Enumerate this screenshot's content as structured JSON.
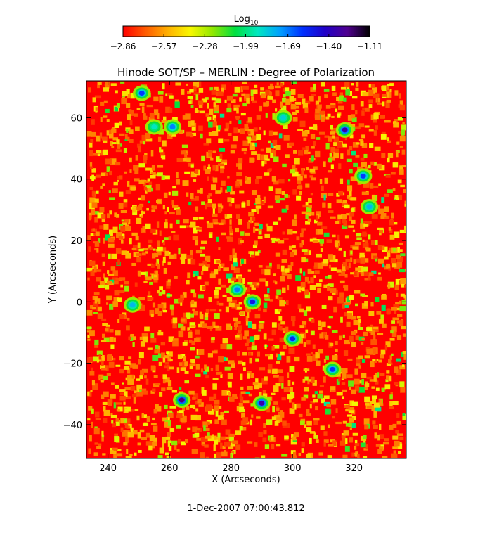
{
  "chart_data": {
    "type": "heatmap",
    "title": "Hinode SOT/SP – MERLIN : Degree of Polarization",
    "xlabel": "X (Arcseconds)",
    "ylabel": "Y (Arcseconds)",
    "xlim": [
      233,
      337
    ],
    "ylim": [
      -51,
      72
    ],
    "x_ticks": [
      240,
      260,
      280,
      300,
      320
    ],
    "x_tick_labels": [
      "240",
      "260",
      "280",
      "300",
      "320"
    ],
    "y_ticks": [
      -40,
      -20,
      0,
      20,
      40,
      60
    ],
    "y_tick_labels": [
      "−40",
      "−20",
      "0",
      "20",
      "40",
      "60"
    ],
    "colorbar": {
      "label_base": "Log",
      "label_sub": "10",
      "range": [
        -2.86,
        -1.11
      ],
      "ticks": [
        -2.86,
        -2.57,
        -2.28,
        -1.99,
        -1.69,
        -1.4,
        -1.11
      ],
      "tick_labels": [
        "−2.86",
        "−2.57",
        "−2.28",
        "−1.99",
        "−1.69",
        "−1.40",
        "−1.11"
      ],
      "colors": [
        "#ff0000",
        "#ff5a00",
        "#ffb000",
        "#f8f800",
        "#90e800",
        "#00e040",
        "#00e8c0",
        "#00a0ff",
        "#0030ff",
        "#2000c8",
        "#500090",
        "#000000"
      ]
    },
    "grid": false,
    "values_note_source": "background level near -2.86",
    "features": [
      {
        "x": 264,
        "y": -32,
        "value": -1.25
      },
      {
        "x": 290,
        "y": -33,
        "value": -1.35
      },
      {
        "x": 317,
        "y": 56,
        "value": -1.35
      },
      {
        "x": 287,
        "y": 0,
        "value": -1.5
      },
      {
        "x": 300,
        "y": -12,
        "value": -1.55
      },
      {
        "x": 313,
        "y": -22,
        "value": -1.6
      },
      {
        "x": 323,
        "y": 41,
        "value": -1.6
      },
      {
        "x": 251,
        "y": 68,
        "value": -1.6
      },
      {
        "x": 261,
        "y": 57,
        "value": -1.7
      },
      {
        "x": 255,
        "y": 57,
        "value": -1.9
      },
      {
        "x": 282,
        "y": 4,
        "value": -1.7
      },
      {
        "x": 248,
        "y": -1,
        "value": -1.8
      },
      {
        "x": 325,
        "y": 31,
        "value": -1.8
      },
      {
        "x": 297,
        "y": 60,
        "value": -1.85
      }
    ]
  },
  "footer": {
    "timestamp": "1-Dec-2007 07:00:43.812"
  }
}
